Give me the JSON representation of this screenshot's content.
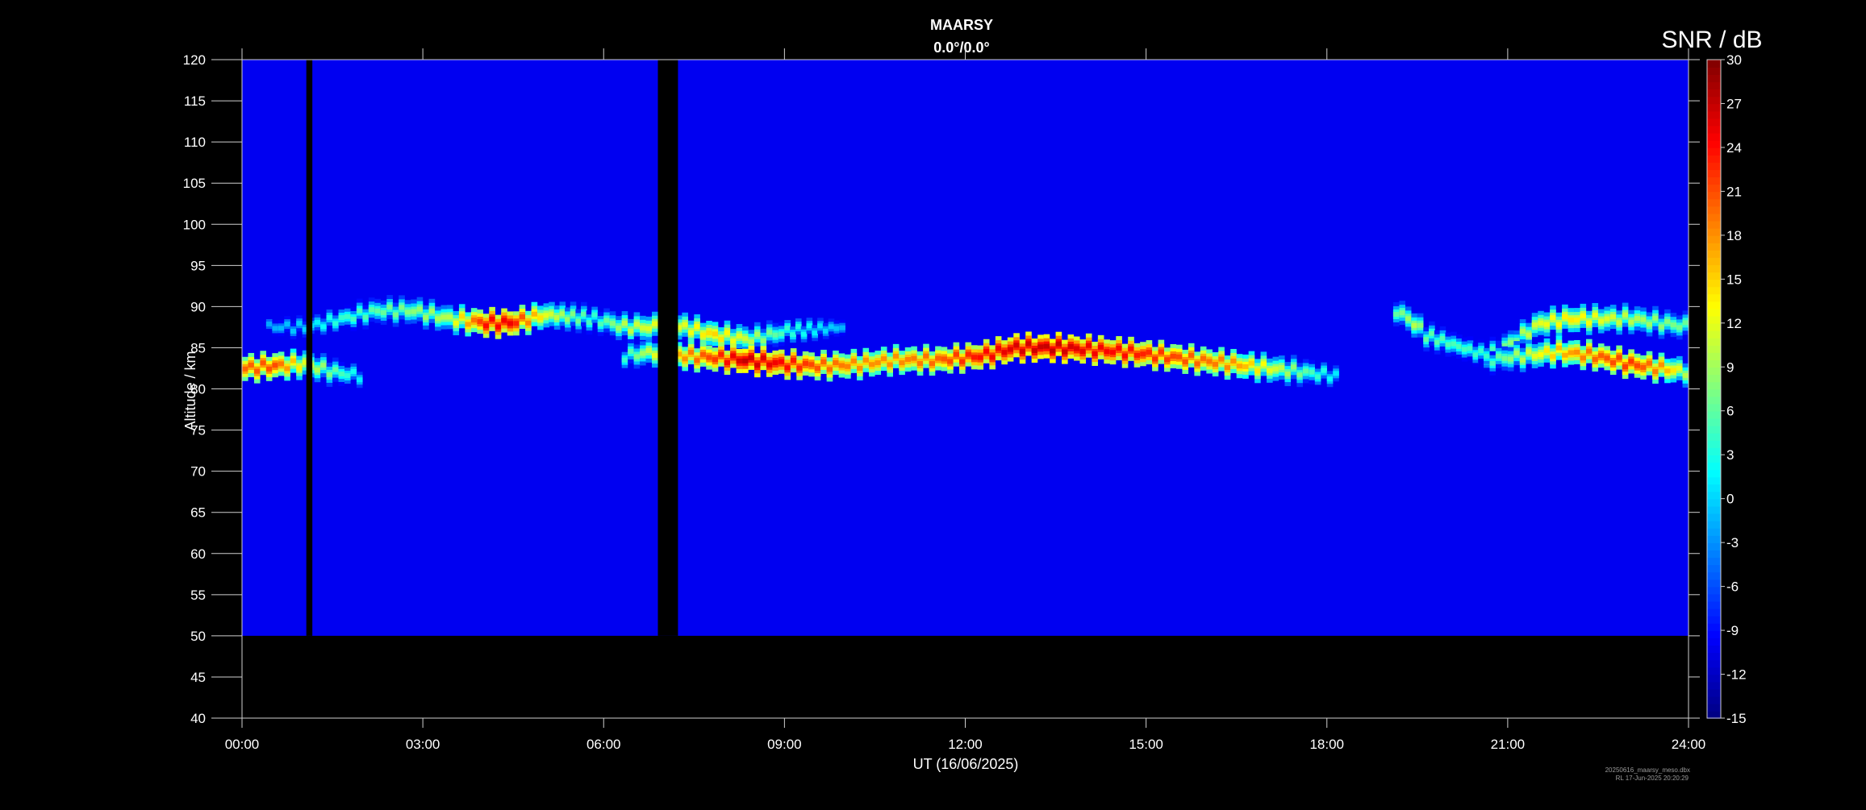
{
  "chart_data": {
    "type": "heatmap",
    "title": "MAARSY",
    "subtitle": "0.0°/0.0°",
    "xlabel": "UT (16/06/2025)",
    "ylabel": "Altitude / km",
    "xlim": [
      "00:00",
      "24:00"
    ],
    "ylim": [
      40,
      120
    ],
    "x_ticks": [
      "00:00",
      "03:00",
      "06:00",
      "09:00",
      "12:00",
      "15:00",
      "18:00",
      "21:00",
      "24:00"
    ],
    "y_ticks": [
      40,
      45,
      50,
      55,
      60,
      65,
      70,
      75,
      80,
      85,
      90,
      95,
      100,
      105,
      110,
      115,
      120
    ],
    "data_altitude_range_km": [
      50,
      120
    ],
    "background_snr_db": -10,
    "colorbar": {
      "title": "SNR / dB",
      "range": [
        -15,
        30
      ],
      "ticks": [
        30,
        27,
        24,
        21,
        18,
        15,
        12,
        9,
        6,
        3,
        0,
        -3,
        -6,
        -9,
        -12,
        -15
      ],
      "colormap": "jet"
    },
    "data_gaps_ut": [
      [
        "01:04",
        "01:10"
      ],
      [
        "06:54",
        "07:14"
      ]
    ],
    "echo_layers": [
      {
        "name": "upper",
        "points": [
          [
            0.4,
            87.5,
            -2
          ],
          [
            1.0,
            87.5,
            0
          ],
          [
            1.6,
            88.5,
            4
          ],
          [
            2.2,
            89.5,
            6
          ],
          [
            2.8,
            89.5,
            8
          ],
          [
            3.4,
            88.5,
            10
          ],
          [
            4.0,
            88,
            24
          ],
          [
            4.4,
            88,
            25
          ],
          [
            5.0,
            89,
            12
          ],
          [
            5.8,
            88.5,
            4
          ],
          [
            6.3,
            87.5,
            10
          ],
          [
            6.8,
            87.5,
            12
          ],
          [
            7.3,
            87.5,
            12
          ],
          [
            7.8,
            86.5,
            15
          ],
          [
            8.4,
            86,
            10
          ],
          [
            9.0,
            87,
            4
          ],
          [
            10.0,
            87.5,
            -2
          ]
        ]
      },
      {
        "name": "main",
        "points": [
          [
            0.0,
            82.5,
            20
          ],
          [
            0.5,
            82.8,
            21
          ],
          [
            1.0,
            83,
            12
          ],
          [
            1.5,
            82,
            6
          ],
          [
            2.0,
            81.5,
            0
          ],
          [
            6.3,
            84,
            4
          ],
          [
            6.8,
            84.5,
            12
          ],
          [
            7.3,
            84,
            18
          ],
          [
            7.8,
            83.8,
            22
          ],
          [
            8.3,
            83.5,
            27
          ],
          [
            9.0,
            83,
            24
          ],
          [
            9.6,
            82.8,
            20
          ],
          [
            10.2,
            83,
            18
          ],
          [
            10.8,
            83.5,
            18
          ],
          [
            11.5,
            83.5,
            20
          ],
          [
            12.2,
            84,
            24
          ],
          [
            12.8,
            85,
            26
          ],
          [
            13.4,
            85,
            27
          ],
          [
            14.0,
            84.8,
            25
          ],
          [
            14.6,
            84.5,
            24
          ],
          [
            15.2,
            84,
            22
          ],
          [
            15.8,
            83.5,
            20
          ],
          [
            16.4,
            83,
            18
          ],
          [
            17.0,
            82.5,
            12
          ],
          [
            17.6,
            82,
            6
          ],
          [
            18.2,
            81.5,
            0
          ]
        ]
      },
      {
        "name": "late-upper",
        "points": [
          [
            19.1,
            89.5,
            6
          ],
          [
            19.4,
            88,
            10
          ],
          [
            19.6,
            86.5,
            6
          ],
          [
            20.6,
            84,
            4
          ],
          [
            21.0,
            85.5,
            8
          ],
          [
            21.5,
            88,
            12
          ],
          [
            22.0,
            88.5,
            14
          ],
          [
            22.5,
            88.5,
            12
          ],
          [
            23.0,
            88.5,
            10
          ],
          [
            23.5,
            88,
            8
          ],
          [
            24.0,
            87.5,
            6
          ]
        ]
      },
      {
        "name": "late-lower",
        "points": [
          [
            20.6,
            83.5,
            4
          ],
          [
            21.2,
            84,
            10
          ],
          [
            21.8,
            84.5,
            16
          ],
          [
            22.4,
            84,
            20
          ],
          [
            23.0,
            83,
            22
          ],
          [
            23.5,
            82.5,
            18
          ],
          [
            24.0,
            82,
            8
          ]
        ]
      }
    ],
    "annotations": [
      "20250616_maarsy_meso.dbx",
      "RL  17-Jun-2025 20:20:29"
    ]
  }
}
